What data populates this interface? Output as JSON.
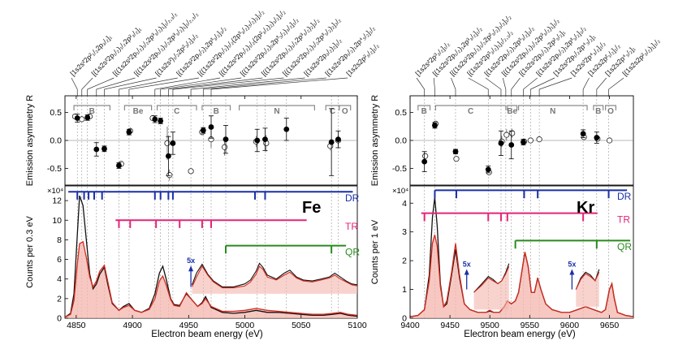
{
  "colors": {
    "DR": "#1a2fa8",
    "TR": "#e3257a",
    "QR": "#2a8a1e",
    "spec_black": "#111111",
    "spec_red": "#d42a1e",
    "shade": "#f4b5ae",
    "guide": "#9a9a9a",
    "bracket": "#8a8a8a"
  },
  "shared": {
    "ylabel_top": "Emission asymmetry R",
    "ylabel_bottom_fe": "Counts per 0.3 eV",
    "ylabel_bottom_kr": "Counts per 1 eV",
    "xlabel": "Electron beam energy (eV)",
    "zoom_label": "5x",
    "res_labels": [
      "DR",
      "TR",
      "QR"
    ],
    "exp_label": "×10⁴"
  },
  "chart_data": [
    {
      "type": "scatter+line",
      "panel": "Fe",
      "title": "Fe",
      "xlim": [
        4840,
        5100
      ],
      "xticks": [
        4850,
        4900,
        4950,
        5000,
        5050,
        5100
      ],
      "top": {
        "ylim": [
          -0.8,
          0.8
        ],
        "yticks": [
          -0.5,
          0.0,
          0.5
        ],
        "ytick_labels": [
          "-0.5",
          "0.0",
          "0.5"
        ]
      },
      "bottom": {
        "ylim": [
          0,
          13.5
        ],
        "yticks": [
          0,
          2,
          4,
          6,
          8,
          10,
          12
        ],
        "ytick_labels": [
          "0",
          "2",
          "4",
          "6",
          "8",
          "10",
          "12"
        ]
      },
      "transitions": [
        "[1s2s²2p²₁/₂2p₃/₂]₁",
        "[(1s2s²2p₁/₂)₁/₂2p²₃/₂]₁",
        "[((1s2s²2p₁/₂)₁/₂2p³₃/₂)₁]₁/₂,₃/₂",
        "[((1s2s²2p₁/₂)₁/₂2p³₃/₂)₁]₁/₂,₃/₂",
        "[(1s2s²)₁/₂2p²₃/₂]₃/₂",
        "[(1s2s²2p₁/₂)₁2p³₃/₂]₃/₂",
        "[((1s2s²2p₁/₂)₁/₂(2p³₃/₂)₃/₂)₂]₁/₂",
        "[((1s2s²2p₁/₂)₁/₂(2p²₃/₂)₂)₃/₂]₁/₂",
        "[((1s2s²2p₁/₂)₀2p³₃/₂)₃/₂]₁/₂",
        "[((1s2s²2p₁/₂)₁/₂2p³₃/₂)₂]₁/₂",
        "[((1s2s²2p₁/₂)₁/₂2p³₃/₂)₂]₃/₂",
        "[(1s2s²2p₃/₂)₂]₁/₂",
        "[(1s2s²2p₁/₂)₁2p⁴₃/₂]₁/₂",
        "[1s2s2p²₃/₂]₁/₂"
      ],
      "guides_x": [
        4851,
        4855,
        4860,
        4868,
        4875,
        4888,
        4897,
        4920,
        4925,
        4932,
        4936,
        4952,
        4963,
        4970,
        4983,
        5011,
        5018,
        5037,
        5077,
        5083
      ],
      "sequence_brackets": [
        {
          "label": "B",
          "x1": 4848,
          "x2": 4880
        },
        {
          "label": "Be",
          "x1": 4893,
          "x2": 4917
        },
        {
          "label": "C",
          "x1": 4922,
          "x2": 4957
        },
        {
          "label": "B",
          "x1": 4962,
          "x2": 4987
        },
        {
          "label": "N",
          "x1": 4995,
          "x2": 5062
        },
        {
          "label": "C",
          "x1": 5072,
          "x2": 5084
        },
        {
          "label": "O",
          "x1": 5084,
          "x2": 5094
        }
      ],
      "asymmetry": {
        "filled": [
          {
            "x": 4851,
            "y": 0.4,
            "err": 0.07
          },
          {
            "x": 4860,
            "y": 0.41,
            "err": 0.05
          },
          {
            "x": 4868,
            "y": -0.16,
            "err": 0.12
          },
          {
            "x": 4875,
            "y": -0.15,
            "err": 0.05
          },
          {
            "x": 4888,
            "y": -0.45,
            "err": 0.05
          },
          {
            "x": 4897,
            "y": 0.15,
            "err": 0.05
          },
          {
            "x": 4920,
            "y": 0.38,
            "err": 0.06
          },
          {
            "x": 4925,
            "y": 0.35,
            "err": 0.05
          },
          {
            "x": 4932,
            "y": -0.28,
            "err": 0.35
          },
          {
            "x": 4936,
            "y": -0.05,
            "err": 0.2
          },
          {
            "x": 4963,
            "y": 0.18,
            "err": 0.05
          },
          {
            "x": 4970,
            "y": 0.24,
            "err": 0.2
          },
          {
            "x": 4983,
            "y": 0.02,
            "err": 0.25
          },
          {
            "x": 5011,
            "y": 0.0,
            "err": 0.2
          },
          {
            "x": 5018,
            "y": 0.02,
            "err": 0.2
          },
          {
            "x": 5037,
            "y": 0.2,
            "err": 0.2
          },
          {
            "x": 5077,
            "y": -0.03,
            "err": 0.6
          },
          {
            "x": 5083,
            "y": 0.02,
            "err": 0.15
          }
        ],
        "open": [
          {
            "x": 4849,
            "y": 0.43,
            "err": 0.05
          },
          {
            "x": 4855,
            "y": 0.38,
            "err": 0.05
          },
          {
            "x": 4862,
            "y": 0.43,
            "err": 0.04
          },
          {
            "x": 4890,
            "y": -0.42,
            "err": 0.05
          },
          {
            "x": 4898,
            "y": 0.17,
            "err": 0.06
          },
          {
            "x": 4918,
            "y": 0.4,
            "err": 0.05
          },
          {
            "x": 4931,
            "y": -0.05,
            "err": 0.3
          },
          {
            "x": 4933,
            "y": -0.62,
            "err": 0.1
          },
          {
            "x": 4952,
            "y": -0.55,
            "err": 0.0
          },
          {
            "x": 4962,
            "y": 0.15,
            "err": 0.06
          },
          {
            "x": 4970,
            "y": 0.02,
            "err": 0.15
          },
          {
            "x": 4982,
            "y": -0.12,
            "err": 0.15
          },
          {
            "x": 5010,
            "y": -0.02,
            "err": 0.1
          },
          {
            "x": 5019,
            "y": -0.05,
            "err": 0.15
          },
          {
            "x": 5076,
            "y": -0.1,
            "err": 0.08
          },
          {
            "x": 5083,
            "y": 0.0,
            "err": 0.08
          }
        ]
      },
      "resonance_lines": {
        "DR": {
          "x": [
            4851,
            4857,
            4861,
            4866,
            4873,
            4920,
            4925,
            4932,
            4936,
            5009,
            5018
          ],
          "x1": 4843,
          "x2": 5096,
          "y": 12.9,
          "tick": 0.8
        },
        "TR": {
          "x": [
            4888,
            4898,
            4921,
            4942,
            4962,
            4970
          ],
          "x1": 4885,
          "x2": 5055,
          "y": 10.0,
          "tick": 0.8
        },
        "QR": {
          "x": [
            4983,
            5077
          ],
          "x1": 4983,
          "x2": 5090,
          "y": 7.4,
          "tick": 0.8
        }
      },
      "spectrum_x": [
        4840,
        4845,
        4848,
        4851,
        4853,
        4856,
        4859,
        4862,
        4865,
        4868,
        4871,
        4875,
        4878,
        4882,
        4888,
        4892,
        4897,
        4902,
        4908,
        4915,
        4920,
        4924,
        4927,
        4930,
        4934,
        4937,
        4942,
        4948,
        4952,
        4958,
        4962,
        4965,
        4970,
        4980,
        4990,
        5000,
        5010,
        5020,
        5030,
        5040,
        5050,
        5060,
        5070,
        5078,
        5085,
        5092,
        5100
      ],
      "spectrum_black": [
        0.1,
        0.5,
        2.5,
        8.5,
        12.5,
        11.5,
        8.0,
        4.5,
        3.0,
        3.5,
        4.5,
        5.2,
        3.5,
        1.5,
        0.8,
        1.2,
        1.5,
        0.8,
        0.6,
        1.0,
        2.5,
        4.6,
        5.3,
        4.0,
        2.0,
        1.4,
        1.3,
        2.5,
        2.0,
        1.2,
        1.6,
        2.2,
        1.1,
        0.6,
        0.5,
        0.6,
        0.8,
        0.6,
        0.6,
        0.5,
        0.4,
        0.3,
        0.3,
        0.4,
        0.5,
        0.3,
        0.2
      ],
      "spectrum_red": [
        0.1,
        0.4,
        1.8,
        5.5,
        7.6,
        7.8,
        6.2,
        4.2,
        3.2,
        3.8,
        4.8,
        5.4,
        3.8,
        1.6,
        0.8,
        1.1,
        1.3,
        0.8,
        0.6,
        0.9,
        2.0,
        3.8,
        4.3,
        3.4,
        1.9,
        1.3,
        1.2,
        2.6,
        2.0,
        1.2,
        1.5,
        2.0,
        1.2,
        0.7,
        0.7,
        0.8,
        1.0,
        0.8,
        0.7,
        0.6,
        0.5,
        0.4,
        0.4,
        0.5,
        0.6,
        0.4,
        0.3
      ],
      "zoom_x": [
        4953,
        4957,
        4962,
        4967,
        4972,
        4980,
        4990,
        5000,
        5005,
        5010,
        5013,
        5016,
        5020,
        5028,
        5035,
        5040,
        5046,
        5052,
        5060,
        5068,
        5075,
        5080,
        5085,
        5090,
        5095,
        5100
      ],
      "zoom_black": [
        3.4,
        4.6,
        5.5,
        4.5,
        3.8,
        3.2,
        3.2,
        3.5,
        3.9,
        4.8,
        5.6,
        5.2,
        4.4,
        4.0,
        4.6,
        4.9,
        4.2,
        3.9,
        3.8,
        4.0,
        4.2,
        4.6,
        4.2,
        3.8,
        3.5,
        3.4
      ],
      "zoom_red": [
        3.2,
        4.2,
        5.3,
        4.4,
        3.7,
        3.1,
        3.1,
        3.3,
        3.7,
        4.5,
        5.3,
        5.0,
        4.2,
        3.9,
        4.4,
        4.7,
        4.1,
        3.8,
        3.7,
        3.9,
        4.1,
        4.4,
        4.0,
        3.7,
        3.4,
        3.3
      ],
      "zoom_arrow": {
        "x": 4952,
        "y1": 3.2,
        "y2": 5.2
      }
    },
    {
      "type": "scatter+line",
      "panel": "Kr",
      "title": "Kr",
      "xlim": [
        9400,
        9680
      ],
      "xticks": [
        9400,
        9450,
        9500,
        9550,
        9600,
        9650
      ],
      "top": {
        "ylim": [
          -0.8,
          0.8
        ],
        "yticks": [
          -0.5,
          0.0,
          0.5
        ],
        "ytick_labels": [
          "-0.5",
          "0.0",
          "0.5"
        ]
      },
      "bottom": {
        "ylim": [
          0,
          4.6
        ],
        "yticks": [
          0,
          1,
          2,
          3,
          4
        ],
        "ytick_labels": [
          "0",
          "1",
          "2",
          "3",
          "4"
        ]
      },
      "transitions": [
        "[1s2s²2p³₃/₂]₁/₂",
        "[(1s2s²2p₁/₂)₁2p³₃/₂]₁/₂",
        "[((1s2s²2p₁/₂)₁/₂2p²₃/₂)₃/₂]₁/₂",
        "[(1s2s²2p³₃/₂)₁]₁/₂,₃/₂",
        "[(1s2s²2p₁/₂)₁2p³₃/₂]₃/₂",
        "[((1s2s²2p₁/₂)₁/₂2p³₃/₂)₁]₁/₂",
        "[(1s2s²2p₁/₂)₁2p²₃/₂]₁",
        "[(1s2s²2p₁/₂)₁2p³₃/₂]₃/₂",
        "[1s2s²2p₁/₂2p⁴₃/₂]₁",
        "[1s2s²2p⁴₃/₂]₁/₂",
        "[1s2s2p²₁/₂]₁/₂",
        "[1s2s2p⁴₃/₂]₁",
        "[(1s2s2p²₃/₂)₁]₁/₂"
      ],
      "guides_x": [
        9418,
        9431,
        9457,
        9498,
        9514,
        9520,
        9527,
        9542,
        9551,
        9562,
        9617,
        9634,
        9649
      ],
      "sequence_brackets": [
        {
          "label": "B",
          "x1": 9410,
          "x2": 9425
        },
        {
          "label": "C",
          "x1": 9432,
          "x2": 9520
        },
        {
          "label": "Be",
          "x1": 9522,
          "x2": 9534
        },
        {
          "label": "N",
          "x1": 9536,
          "x2": 9622
        },
        {
          "label": "B",
          "x1": 9630,
          "x2": 9642
        },
        {
          "label": "O",
          "x1": 9645,
          "x2": 9658
        }
      ],
      "asymmetry": {
        "filled": [
          {
            "x": 9418,
            "y": -0.38,
            "err": 0.18
          },
          {
            "x": 9431,
            "y": 0.27,
            "err": 0.05
          },
          {
            "x": 9457,
            "y": -0.2,
            "err": 0.04
          },
          {
            "x": 9498,
            "y": -0.52,
            "err": 0.06
          },
          {
            "x": 9514,
            "y": -0.05,
            "err": 0.22
          },
          {
            "x": 9527,
            "y": -0.08,
            "err": 0.25
          },
          {
            "x": 9542,
            "y": -0.03,
            "err": 0.05
          },
          {
            "x": 9617,
            "y": 0.12,
            "err": 0.07
          },
          {
            "x": 9634,
            "y": 0.05,
            "err": 0.1
          }
        ],
        "open": [
          {
            "x": 9419,
            "y": -0.28,
            "err": 0.05
          },
          {
            "x": 9432,
            "y": 0.3,
            "err": 0.04
          },
          {
            "x": 9458,
            "y": -0.33,
            "err": 0.04
          },
          {
            "x": 9499,
            "y": -0.57,
            "err": 0.05
          },
          {
            "x": 9515,
            "y": -0.02,
            "err": 0.1
          },
          {
            "x": 9521,
            "y": 0.1,
            "err": 0.1
          },
          {
            "x": 9528,
            "y": 0.13,
            "err": 0.08
          },
          {
            "x": 9543,
            "y": -0.02,
            "err": 0.05
          },
          {
            "x": 9551,
            "y": 0.0,
            "err": 0.03
          },
          {
            "x": 9562,
            "y": 0.02,
            "err": 0.03
          },
          {
            "x": 9618,
            "y": 0.06,
            "err": 0.05
          },
          {
            "x": 9635,
            "y": 0.03,
            "err": 0.05
          },
          {
            "x": 9650,
            "y": 0.0,
            "err": 0.0
          }
        ]
      },
      "resonance_lines": {
        "DR": {
          "x": [
            9431,
            9458,
            9543,
            9560,
            9649
          ],
          "x1": 9431,
          "x2": 9672,
          "y": 4.45,
          "tick": 0.28
        },
        "TR": {
          "x": [
            9418,
            9498,
            9514,
            9522,
            9617
          ],
          "x1": 9414,
          "x2": 9635,
          "y": 3.65,
          "tick": 0.28
        },
        "QR": {
          "x": [
            9532,
            9634
          ],
          "x1": 9532,
          "x2": 9676,
          "y": 2.7,
          "tick": 0.28
        }
      },
      "spectrum_x": [
        9400,
        9410,
        9418,
        9424,
        9428,
        9431,
        9434,
        9438,
        9442,
        9446,
        9452,
        9457,
        9462,
        9468,
        9475,
        9485,
        9495,
        9500,
        9505,
        9512,
        9518,
        9522,
        9527,
        9532,
        9536,
        9540,
        9544,
        9548,
        9552,
        9556,
        9560,
        9564,
        9570,
        9578,
        9590,
        9600,
        9610,
        9620,
        9630,
        9640,
        9645,
        9650,
        9653,
        9656,
        9660,
        9670,
        9680
      ],
      "spectrum_black": [
        0.05,
        0.1,
        0.3,
        1.5,
        3.5,
        4.2,
        3.2,
        1.2,
        0.4,
        0.5,
        1.5,
        2.4,
        1.4,
        0.5,
        0.3,
        0.2,
        0.2,
        0.25,
        0.2,
        0.2,
        0.4,
        0.6,
        0.5,
        0.6,
        0.9,
        1.6,
        2.3,
        1.8,
        0.9,
        0.9,
        1.4,
        1.0,
        0.5,
        0.3,
        0.2,
        0.2,
        0.3,
        0.4,
        0.3,
        0.2,
        0.3,
        1.0,
        1.2,
        0.7,
        0.2,
        0.1,
        0.05
      ],
      "spectrum_red": [
        0.05,
        0.1,
        0.3,
        1.3,
        2.6,
        2.9,
        2.5,
        1.1,
        0.4,
        0.6,
        1.6,
        2.6,
        1.5,
        0.5,
        0.3,
        0.2,
        0.2,
        0.28,
        0.2,
        0.2,
        0.4,
        0.6,
        0.5,
        0.6,
        0.9,
        1.6,
        2.3,
        1.8,
        0.9,
        0.9,
        1.4,
        1.0,
        0.5,
        0.3,
        0.2,
        0.2,
        0.3,
        0.4,
        0.3,
        0.2,
        0.3,
        1.0,
        1.2,
        0.7,
        0.2,
        0.1,
        0.05
      ],
      "zoom_x": [
        9480,
        9490,
        9498,
        9504,
        9510,
        9515,
        9520,
        9524
      ],
      "zoom_black": [
        0.9,
        1.2,
        1.45,
        1.35,
        1.2,
        1.3,
        1.6,
        1.9
      ],
      "zoom_red": [
        0.9,
        1.15,
        1.4,
        1.3,
        1.2,
        1.3,
        1.55,
        1.8
      ],
      "zoom2_x": [
        9608,
        9614,
        9620,
        9626,
        9632,
        9637
      ],
      "zoom2_black": [
        1.0,
        1.4,
        1.6,
        1.5,
        1.3,
        1.7
      ],
      "zoom2_red": [
        1.0,
        1.35,
        1.55,
        1.45,
        1.3,
        1.6
      ],
      "zoom_arrow": {
        "x": 9471,
        "y1": 1.0,
        "y2": 1.65
      },
      "zoom2_arrow": {
        "x": 9603,
        "y1": 1.0,
        "y2": 1.65
      }
    }
  ]
}
